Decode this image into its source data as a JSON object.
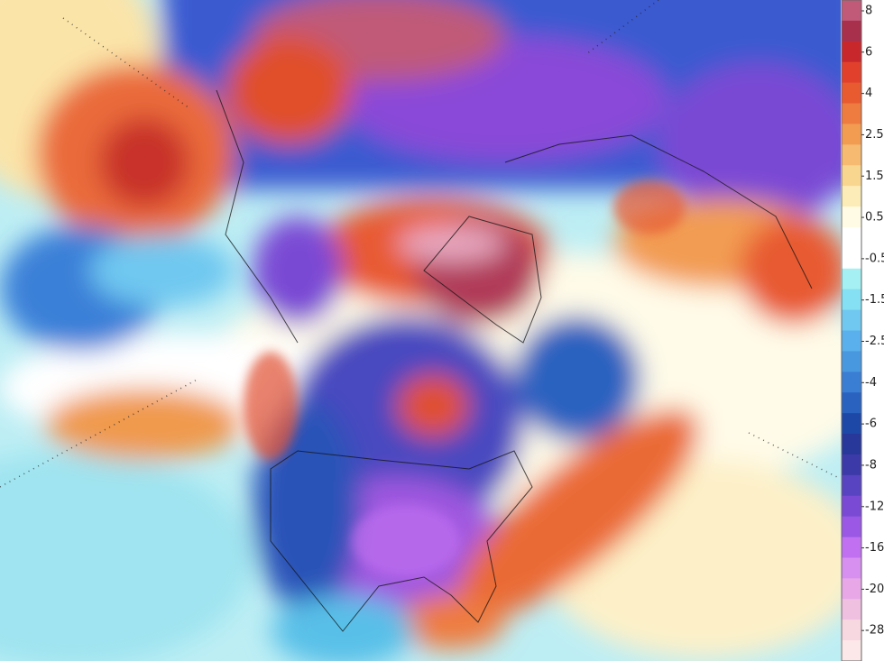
{
  "legend": {
    "labels": [
      "8",
      "6",
      "4",
      "2.5",
      "1.5",
      "0.5",
      "-0.5",
      "-1.5",
      "-2.5",
      "-4",
      "-6",
      "-8",
      "-12",
      "-16",
      "-20",
      "-28"
    ],
    "colors": [
      "#c05a78",
      "#a8304c",
      "#c8282c",
      "#e0402c",
      "#e85a30",
      "#ee7c40",
      "#f29c52",
      "#f6ba70",
      "#f9d690",
      "#fcecb8",
      "#fffbe4",
      "#ffffff",
      "#ffffff",
      "#a4f0f2",
      "#84e0f2",
      "#70c8f0",
      "#5ab0ec",
      "#4898e0",
      "#3a7ed4",
      "#2a62c0",
      "#1e48a8",
      "#28389a",
      "#3c3aa8",
      "#5844c0",
      "#7a4ad4",
      "#9a58e4",
      "#c070f0",
      "#d890f0",
      "#e8a8e8",
      "#f0c0e0",
      "#f8d8e0",
      "#fce8e8"
    ]
  }
}
